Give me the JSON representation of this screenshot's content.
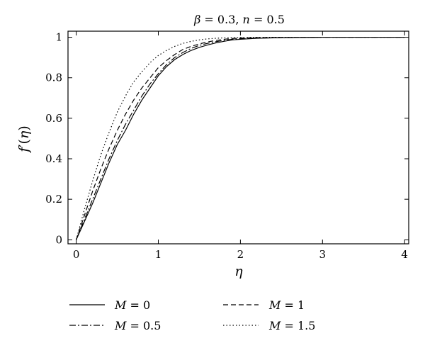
{
  "chart_data": {
    "type": "line",
    "title": {
      "beta_symbol": "β",
      "beta_rest": " = 0.3, ",
      "n_symbol": "n",
      "n_rest": " = 0.5"
    },
    "xlabel": "η",
    "ylabel": {
      "prefix": "f",
      "prime": "′",
      "open": "(",
      "var": "η",
      "close": ")"
    },
    "xlim": [
      -0.1,
      4.05
    ],
    "ylim": [
      -0.02,
      1.03
    ],
    "xticks": [
      0,
      1,
      2,
      3,
      4
    ],
    "xtick_labels": [
      "0",
      "1",
      "2",
      "3",
      "4"
    ],
    "yticks": [
      0,
      0.2,
      0.4,
      0.6,
      0.8,
      1
    ],
    "ytick_labels": [
      "0",
      "0.2",
      "0.4",
      "0.6",
      "0.8",
      "1"
    ],
    "grid": false,
    "legend_position": "below",
    "series": [
      {
        "name": "M = 0",
        "legend_var": "M",
        "legend_val": " = 0",
        "dash": "solid",
        "color": "#000000",
        "x": [
          0,
          0.1,
          0.2,
          0.3,
          0.4,
          0.5,
          0.6,
          0.7,
          0.8,
          0.9,
          1.0,
          1.1,
          1.2,
          1.3,
          1.4,
          1.5,
          1.6,
          1.7,
          1.8,
          1.9,
          2.0,
          2.2,
          2.5,
          3.0,
          3.5,
          4.0
        ],
        "y": [
          0,
          0.09,
          0.18,
          0.28,
          0.38,
          0.47,
          0.54,
          0.62,
          0.69,
          0.75,
          0.81,
          0.855,
          0.89,
          0.915,
          0.935,
          0.95,
          0.962,
          0.972,
          0.98,
          0.987,
          0.99,
          0.995,
          0.998,
          1.0,
          1.0,
          1.0
        ]
      },
      {
        "name": "M = 0.5",
        "legend_var": "M",
        "legend_val": " = 0.5",
        "dash": "dashdot",
        "color": "#000000",
        "x": [
          0,
          0.1,
          0.2,
          0.3,
          0.4,
          0.5,
          0.6,
          0.7,
          0.8,
          0.9,
          1.0,
          1.1,
          1.2,
          1.3,
          1.4,
          1.5,
          1.6,
          1.7,
          1.8,
          1.9,
          2.0,
          2.2,
          2.5,
          3.0,
          3.5,
          4.0
        ],
        "y": [
          0,
          0.1,
          0.2,
          0.3,
          0.4,
          0.49,
          0.57,
          0.64,
          0.71,
          0.77,
          0.82,
          0.865,
          0.9,
          0.925,
          0.945,
          0.96,
          0.97,
          0.978,
          0.985,
          0.99,
          0.993,
          0.996,
          0.998,
          1.0,
          1.0,
          1.0
        ]
      },
      {
        "name": "M = 1",
        "legend_var": "M",
        "legend_val": " = 1",
        "dash": "dashed",
        "color": "#000000",
        "x": [
          0,
          0.1,
          0.2,
          0.3,
          0.4,
          0.5,
          0.6,
          0.7,
          0.8,
          0.9,
          1.0,
          1.1,
          1.2,
          1.3,
          1.4,
          1.5,
          1.6,
          1.7,
          1.8,
          1.9,
          2.0,
          2.2,
          2.5,
          3.0,
          3.5,
          4.0
        ],
        "y": [
          0,
          0.12,
          0.24,
          0.35,
          0.45,
          0.54,
          0.62,
          0.69,
          0.75,
          0.8,
          0.85,
          0.885,
          0.915,
          0.94,
          0.955,
          0.967,
          0.977,
          0.984,
          0.99,
          0.994,
          0.996,
          0.998,
          0.999,
          1.0,
          1.0,
          1.0
        ]
      },
      {
        "name": "M = 1.5",
        "legend_var": "M",
        "legend_val": " = 1.5",
        "dash": "dotted",
        "color": "#000000",
        "x": [
          0,
          0.1,
          0.2,
          0.3,
          0.4,
          0.5,
          0.6,
          0.7,
          0.8,
          0.9,
          1.0,
          1.1,
          1.2,
          1.3,
          1.4,
          1.5,
          1.6,
          1.7,
          1.8,
          1.9,
          2.0,
          2.2,
          2.5,
          3.0,
          3.5,
          4.0
        ],
        "y": [
          0,
          0.15,
          0.29,
          0.42,
          0.53,
          0.63,
          0.71,
          0.78,
          0.83,
          0.875,
          0.91,
          0.935,
          0.955,
          0.97,
          0.98,
          0.987,
          0.992,
          0.995,
          0.997,
          0.998,
          0.999,
          1.0,
          1.0,
          1.0,
          1.0,
          1.0
        ]
      }
    ]
  }
}
